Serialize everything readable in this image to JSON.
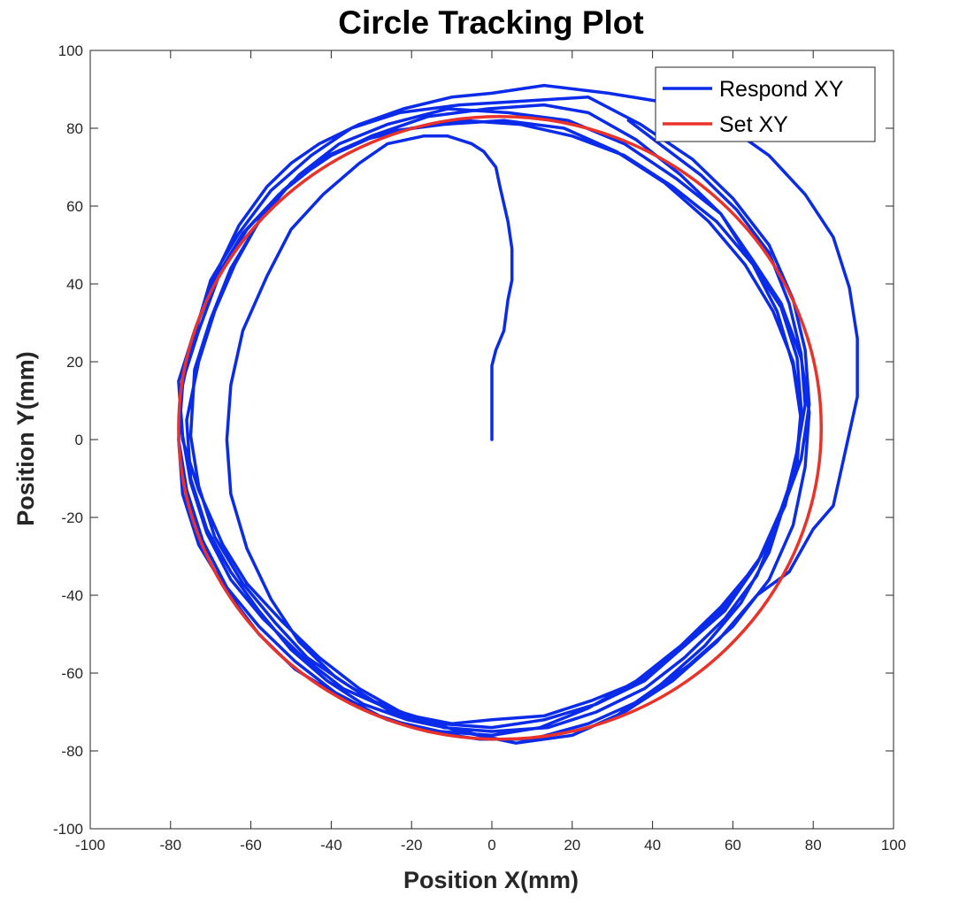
{
  "chart_data": {
    "type": "line",
    "title": "Circle Tracking Plot",
    "xlabel": "Position X(mm)",
    "ylabel": "Position Y(mm)",
    "xlim": [
      -100,
      100
    ],
    "ylim": [
      -100,
      100
    ],
    "xticks": [
      -100,
      -80,
      -60,
      -40,
      -20,
      0,
      20,
      40,
      60,
      80,
      100
    ],
    "yticks": [
      -100,
      -80,
      -60,
      -40,
      -20,
      0,
      20,
      40,
      60,
      80,
      100
    ],
    "grid": false,
    "legend_position": "top-right",
    "series": [
      {
        "name": "Respond XY",
        "color": "#0b2bea",
        "points": [
          [
            0,
            0
          ],
          [
            0,
            19
          ],
          [
            1,
            23
          ],
          [
            3,
            28
          ],
          [
            4,
            36
          ],
          [
            5,
            41
          ],
          [
            5,
            49
          ],
          [
            4,
            56
          ],
          [
            2,
            65
          ],
          [
            1,
            70
          ],
          [
            -2,
            74
          ],
          [
            -5,
            76
          ],
          [
            -11,
            78
          ],
          [
            -17,
            78
          ],
          [
            -26,
            76
          ],
          [
            -33,
            71
          ],
          [
            -42,
            63
          ],
          [
            -50,
            54
          ],
          [
            -56,
            42
          ],
          [
            -62,
            28
          ],
          [
            -65,
            14
          ],
          [
            -66,
            0
          ],
          [
            -65,
            -14
          ],
          [
            -61,
            -28
          ],
          [
            -55,
            -41
          ],
          [
            -48,
            -52
          ],
          [
            -39,
            -61
          ],
          [
            -30,
            -67
          ],
          [
            -20,
            -71
          ],
          [
            -10,
            -73
          ],
          [
            0,
            -72
          ],
          [
            13,
            -71
          ],
          [
            25,
            -67
          ],
          [
            37,
            -62
          ],
          [
            48,
            -53
          ],
          [
            58,
            -43
          ],
          [
            67,
            -30
          ],
          [
            73,
            -17
          ],
          [
            76,
            -4
          ],
          [
            77,
            8
          ],
          [
            76,
            21
          ],
          [
            72,
            34
          ],
          [
            65,
            45
          ],
          [
            56,
            56
          ],
          [
            45,
            65
          ],
          [
            33,
            73
          ],
          [
            20,
            78
          ],
          [
            7,
            81
          ],
          [
            -7,
            82
          ],
          [
            -20,
            80
          ],
          [
            -32,
            77
          ],
          [
            -43,
            72
          ],
          [
            -52,
            64
          ],
          [
            -61,
            54
          ],
          [
            -68,
            42
          ],
          [
            -73,
            28
          ],
          [
            -77,
            15
          ],
          [
            -78,
            0
          ],
          [
            -76,
            -13
          ],
          [
            -72,
            -26
          ],
          [
            -66,
            -38
          ],
          [
            -58,
            -48
          ],
          [
            -49,
            -57
          ],
          [
            -39,
            -65
          ],
          [
            -28,
            -71
          ],
          [
            -16,
            -75
          ],
          [
            -3,
            -77
          ],
          [
            10,
            -77
          ],
          [
            24,
            -73
          ],
          [
            37,
            -67
          ],
          [
            49,
            -58
          ],
          [
            60,
            -48
          ],
          [
            69,
            -36
          ],
          [
            75,
            -22
          ],
          [
            78,
            -7
          ],
          [
            79,
            7
          ],
          [
            77,
            21
          ],
          [
            72,
            35
          ],
          [
            65,
            46
          ],
          [
            57,
            58
          ],
          [
            47,
            68
          ],
          [
            36,
            77
          ],
          [
            24,
            84
          ],
          [
            13,
            86
          ],
          [
            -1,
            85
          ],
          [
            -16,
            83
          ],
          [
            -30,
            78
          ],
          [
            -42,
            72
          ],
          [
            -53,
            63
          ],
          [
            -62,
            53
          ],
          [
            -69,
            41
          ],
          [
            -74,
            28
          ],
          [
            -77,
            14
          ],
          [
            -78,
            0
          ],
          [
            -77,
            -14
          ],
          [
            -73,
            -27
          ],
          [
            -66,
            -39
          ],
          [
            -58,
            -50
          ],
          [
            -49,
            -59
          ],
          [
            -38,
            -66
          ],
          [
            -26,
            -72
          ],
          [
            -13,
            -75
          ],
          [
            0,
            -76
          ],
          [
            12,
            -74
          ],
          [
            24,
            -69
          ],
          [
            36,
            -62
          ],
          [
            47,
            -53
          ],
          [
            57,
            -43
          ],
          [
            66,
            -32
          ],
          [
            72,
            -19
          ],
          [
            77,
            -5
          ],
          [
            79,
            9
          ],
          [
            78,
            23
          ],
          [
            75,
            36
          ],
          [
            69,
            50
          ],
          [
            60,
            62
          ],
          [
            50,
            72
          ],
          [
            37,
            81
          ],
          [
            24,
            88
          ],
          [
            8,
            87
          ],
          [
            -8,
            86
          ],
          [
            -23,
            84
          ],
          [
            -35,
            80
          ],
          [
            -45,
            73
          ],
          [
            -55,
            64
          ],
          [
            -63,
            53
          ],
          [
            -70,
            41
          ],
          [
            -74,
            27
          ],
          [
            -78,
            15
          ],
          [
            -77,
            1
          ],
          [
            -75,
            -11
          ],
          [
            -71,
            -24
          ],
          [
            -65,
            -36
          ],
          [
            -57,
            -46
          ],
          [
            -47,
            -56
          ],
          [
            -37,
            -64
          ],
          [
            -26,
            -69
          ],
          [
            -13,
            -73
          ],
          [
            0,
            -74
          ],
          [
            13,
            -72
          ],
          [
            26,
            -68
          ],
          [
            38,
            -62
          ],
          [
            48,
            -53
          ],
          [
            58,
            -44
          ],
          [
            66,
            -32
          ],
          [
            72,
            -18
          ],
          [
            76,
            -6
          ],
          [
            77,
            7
          ],
          [
            75,
            20
          ],
          [
            70,
            33
          ],
          [
            63,
            45
          ],
          [
            54,
            56
          ],
          [
            43,
            66
          ],
          [
            31,
            74
          ],
          [
            18,
            80
          ],
          [
            3,
            82
          ],
          [
            -12,
            81
          ],
          [
            -27,
            79
          ],
          [
            -40,
            73
          ],
          [
            -50,
            66
          ],
          [
            -58,
            56
          ],
          [
            -65,
            44
          ],
          [
            -70,
            31
          ],
          [
            -74,
            18
          ],
          [
            -75,
            1
          ],
          [
            -73,
            -12
          ],
          [
            -69,
            -25
          ],
          [
            -62,
            -37
          ],
          [
            -54,
            -47
          ],
          [
            -46,
            -56
          ],
          [
            -36,
            -63
          ],
          [
            -25,
            -70
          ],
          [
            -12,
            -74
          ],
          [
            0,
            -75
          ],
          [
            14,
            -74
          ],
          [
            26,
            -70
          ],
          [
            38,
            -64
          ],
          [
            48,
            -56
          ],
          [
            58,
            -46
          ],
          [
            66,
            -35
          ],
          [
            71,
            -22
          ],
          [
            75,
            -10
          ],
          [
            77,
            5
          ],
          [
            75,
            19
          ],
          [
            71,
            33
          ],
          [
            65,
            45
          ],
          [
            57,
            58
          ],
          [
            46,
            67
          ],
          [
            33,
            76
          ],
          [
            19,
            82
          ],
          [
            4,
            84
          ],
          [
            -11,
            85
          ],
          [
            -26,
            81
          ],
          [
            -38,
            76
          ],
          [
            -48,
            68
          ],
          [
            -57,
            58
          ],
          [
            -64,
            45
          ],
          [
            -69,
            33
          ],
          [
            -73,
            20
          ],
          [
            -76,
            5
          ],
          [
            -75,
            -10
          ],
          [
            -71,
            -23
          ],
          [
            -65,
            -34
          ],
          [
            -58,
            -44
          ],
          [
            -50,
            -54
          ],
          [
            -41,
            -62
          ],
          [
            -32,
            -68
          ],
          [
            -21,
            -72
          ],
          [
            -7,
            -75
          ],
          [
            6,
            -78
          ],
          [
            20,
            -76
          ],
          [
            33,
            -70
          ],
          [
            45,
            -62
          ],
          [
            56,
            -52
          ],
          [
            66,
            -40
          ],
          [
            74,
            -34
          ],
          [
            80,
            -23
          ],
          [
            85,
            -17
          ],
          [
            91,
            11
          ],
          [
            91,
            26
          ],
          [
            89,
            39
          ],
          [
            85,
            52
          ],
          [
            78,
            63
          ],
          [
            69,
            73
          ],
          [
            58,
            81
          ],
          [
            47,
            86
          ],
          [
            29,
            89
          ],
          [
            13,
            91
          ],
          [
            0,
            89
          ],
          [
            -10,
            88
          ],
          [
            -22,
            85
          ],
          [
            -33,
            81
          ],
          [
            -43,
            76
          ],
          [
            -50,
            71
          ],
          [
            -56,
            65
          ],
          [
            -63,
            55
          ],
          [
            -69,
            42
          ],
          [
            -74,
            28
          ],
          [
            -78,
            15
          ],
          [
            -77,
            0
          ],
          [
            -73,
            -13
          ],
          [
            -67,
            -27
          ],
          [
            -61,
            -37
          ],
          [
            -52,
            -47
          ],
          [
            -43,
            -56
          ],
          [
            -33,
            -64
          ],
          [
            -21,
            -71
          ],
          [
            -8,
            -75
          ],
          [
            6,
            -78
          ],
          [
            20,
            -76
          ],
          [
            31,
            -71
          ],
          [
            42,
            -63
          ],
          [
            53,
            -53
          ],
          [
            62,
            -42
          ],
          [
            69,
            -29
          ],
          [
            73,
            -16
          ],
          [
            76,
            -3
          ],
          [
            78,
            9
          ],
          [
            77,
            22
          ],
          [
            74,
            35
          ],
          [
            69,
            48
          ],
          [
            61,
            59
          ],
          [
            52,
            68
          ],
          [
            43,
            75
          ],
          [
            34,
            82
          ]
        ]
      },
      {
        "name": "Set XY",
        "color": "#e8322a",
        "shape": "circle",
        "center": [
          2,
          3
        ],
        "radius": 80
      }
    ]
  }
}
